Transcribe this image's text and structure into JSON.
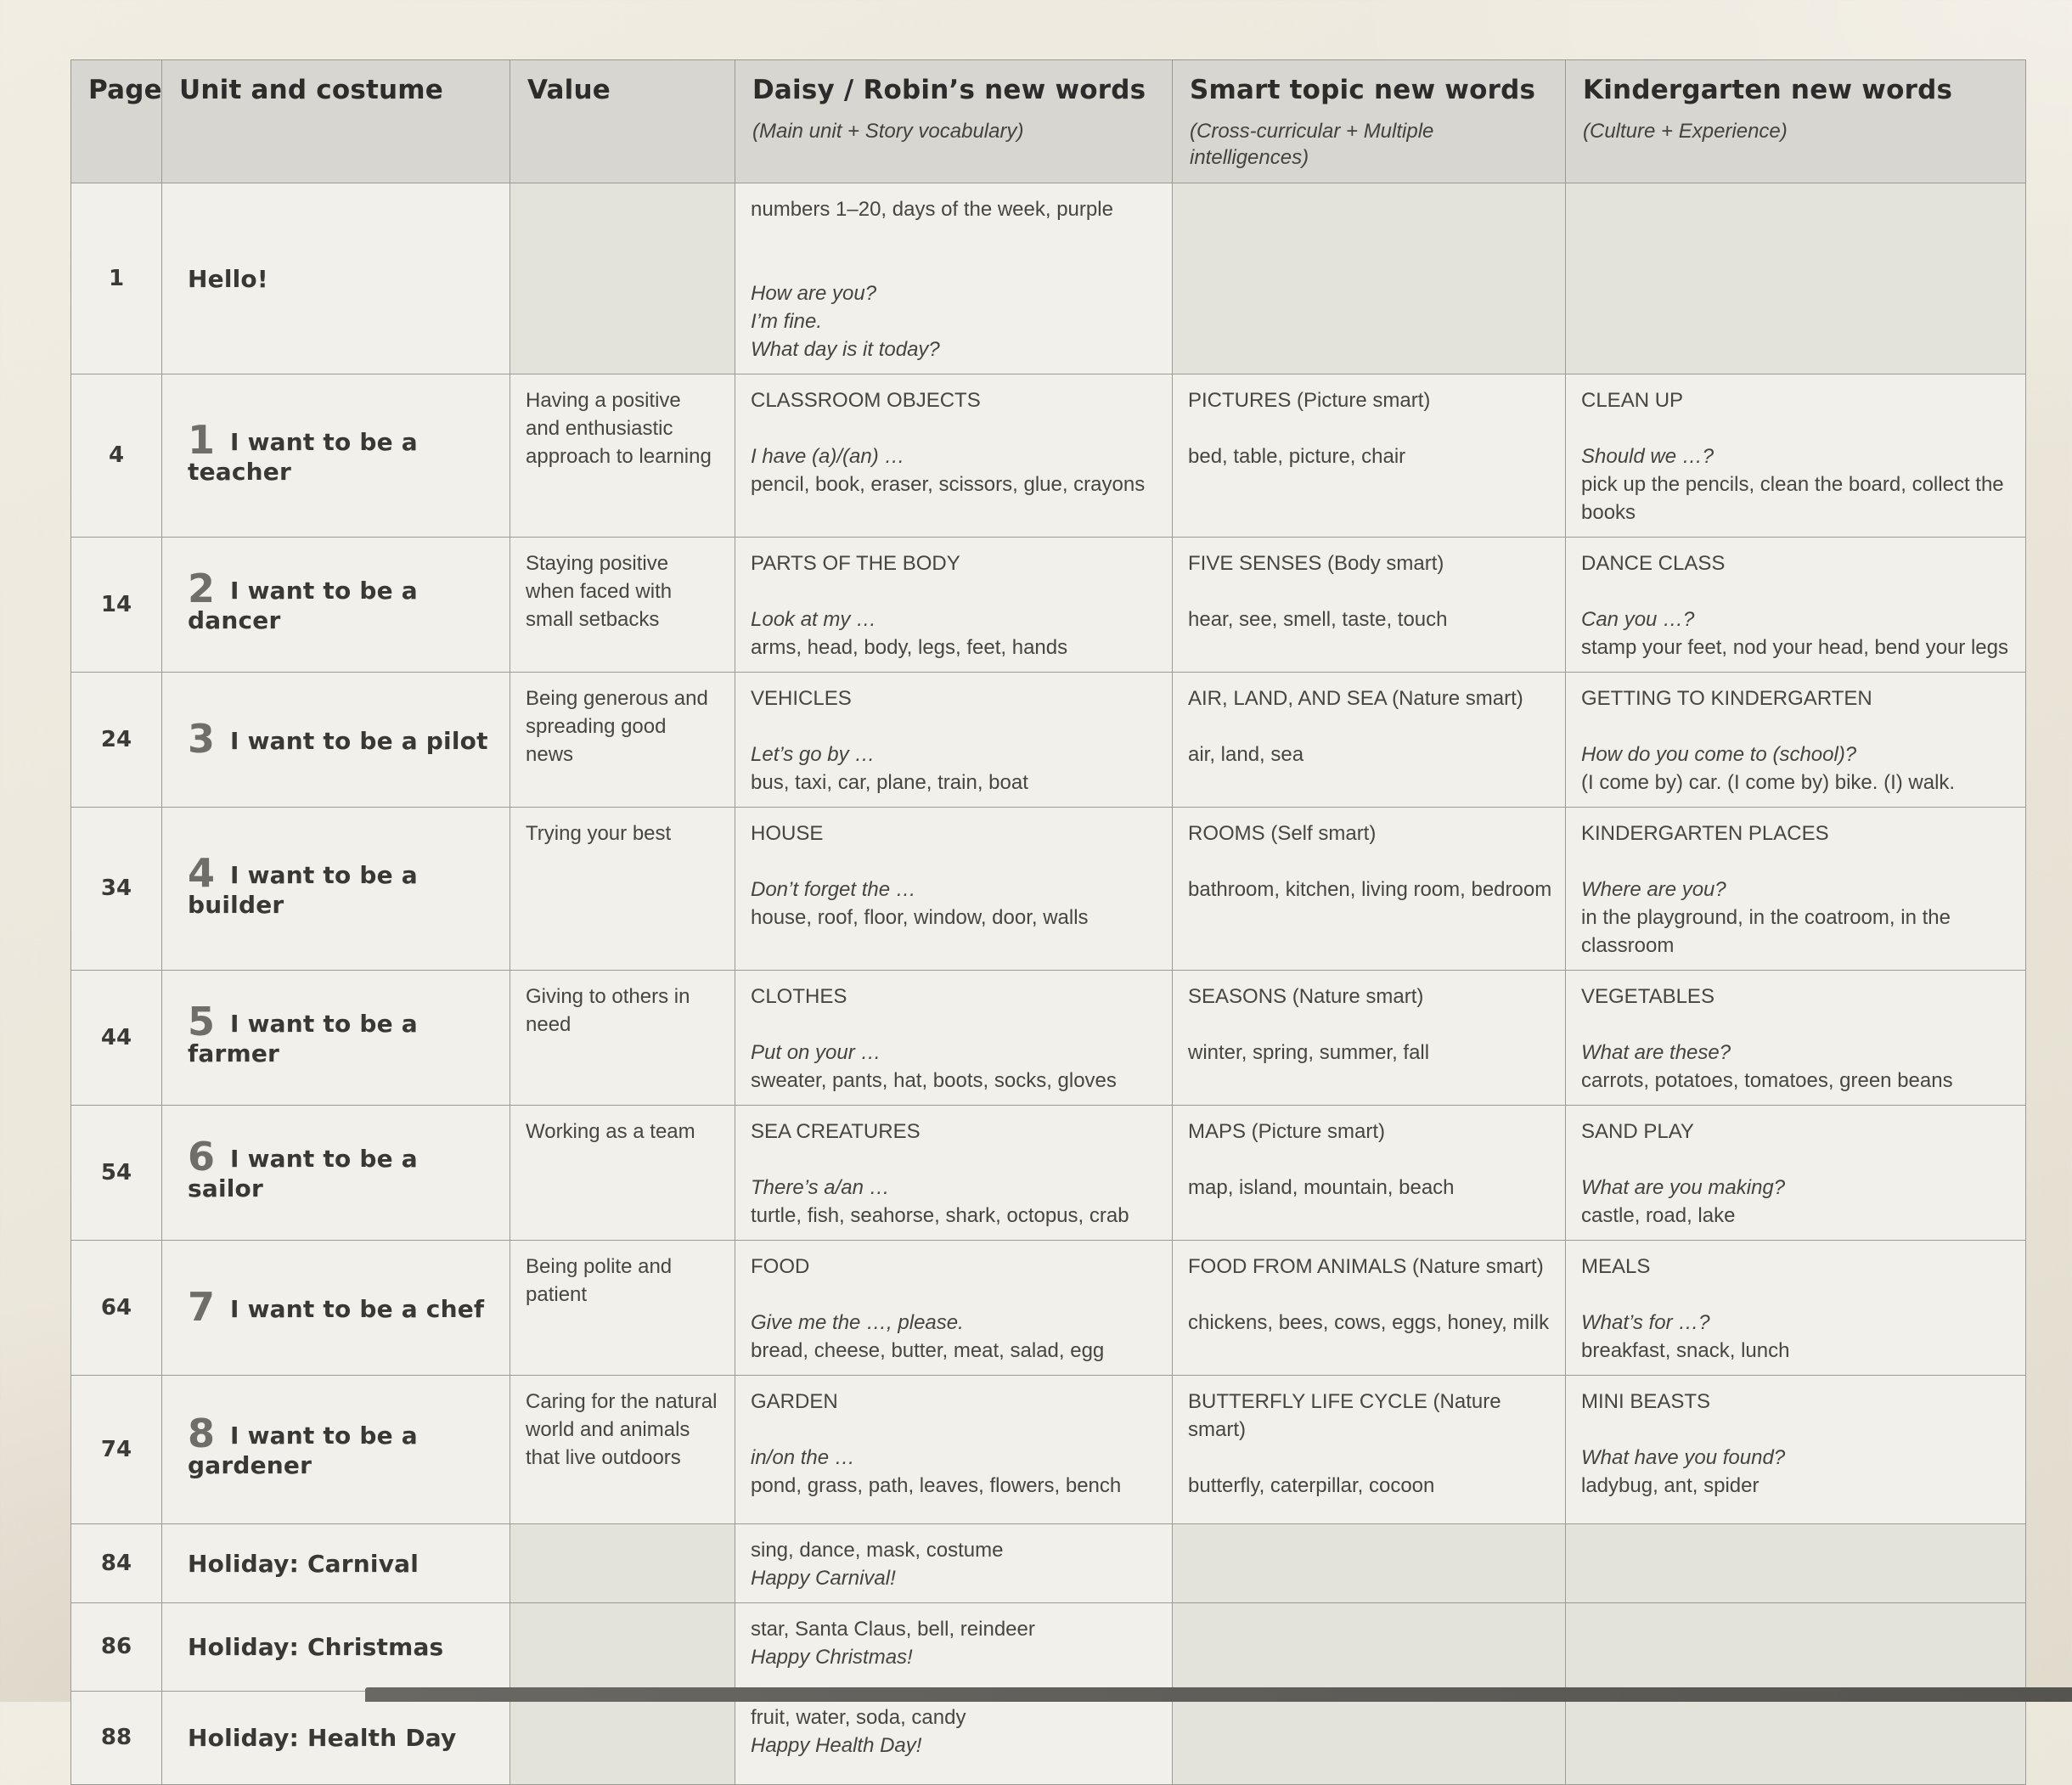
{
  "table": {
    "columns": [
      {
        "label": "Page",
        "sublabel": ""
      },
      {
        "label": "Unit and costume",
        "sublabel": ""
      },
      {
        "label": "Value",
        "sublabel": ""
      },
      {
        "label": "Daisy / Robin’s new words",
        "sublabel": "(Main unit + Story vocabulary)"
      },
      {
        "label": "Smart topic new words",
        "sublabel": "(Cross-curricular + Multiple intelligences)"
      },
      {
        "label": "Kindergarten new words",
        "sublabel": "(Culture + Experience)"
      }
    ],
    "rows": [
      {
        "page": "1",
        "unit_number": "",
        "unit_title": "Hello!",
        "value": null,
        "daisy": [
          {
            "text": "numbers 1–20, days of the week, purple"
          },
          {
            "text": ""
          },
          {
            "text": ""
          },
          {
            "text": "How are you?",
            "style": "italic"
          },
          {
            "text": "I’m fine.",
            "style": "italic"
          },
          {
            "text": "What day is it today?",
            "style": "italic"
          }
        ],
        "smart": null,
        "kinder": null
      },
      {
        "page": "4",
        "unit_number": "1",
        "unit_title": "I want to be a teacher",
        "value": "Having a positive and enthusiastic approach to learning",
        "daisy": [
          {
            "text": "CLASSROOM OBJECTS"
          },
          {
            "text": ""
          },
          {
            "text": "I have (a)/(an) …",
            "style": "italic"
          },
          {
            "text": "pencil, book, eraser, scissors, glue, crayons"
          }
        ],
        "smart": [
          {
            "text": "PICTURES (Picture smart)"
          },
          {
            "text": ""
          },
          {
            "text": "bed, table, picture, chair"
          }
        ],
        "kinder": [
          {
            "text": "CLEAN UP"
          },
          {
            "text": ""
          },
          {
            "text": "Should we …?",
            "style": "italic"
          },
          {
            "text": "pick up the pencils, clean the board, collect the books"
          }
        ]
      },
      {
        "page": "14",
        "unit_number": "2",
        "unit_title": "I want to be a dancer",
        "value": "Staying positive when faced with small setbacks",
        "daisy": [
          {
            "text": "PARTS OF THE BODY"
          },
          {
            "text": ""
          },
          {
            "text": "Look at my …",
            "style": "italic"
          },
          {
            "text": "arms, head, body, legs, feet, hands"
          }
        ],
        "smart": [
          {
            "text": "FIVE SENSES (Body smart)"
          },
          {
            "text": ""
          },
          {
            "text": "hear, see, smell, taste, touch"
          }
        ],
        "kinder": [
          {
            "text": "DANCE CLASS"
          },
          {
            "text": ""
          },
          {
            "text": "Can you …?",
            "style": "italic"
          },
          {
            "text": "stamp your feet, nod your head, bend your legs"
          }
        ]
      },
      {
        "page": "24",
        "unit_number": "3",
        "unit_title": "I want to be a pilot",
        "value": "Being generous and spreading good news",
        "daisy": [
          {
            "text": "VEHICLES"
          },
          {
            "text": ""
          },
          {
            "text": "Let’s go by …",
            "style": "italic"
          },
          {
            "text": "bus, taxi, car, plane, train, boat"
          }
        ],
        "smart": [
          {
            "text": "AIR, LAND, AND SEA (Nature smart)"
          },
          {
            "text": ""
          },
          {
            "text": "air, land, sea"
          }
        ],
        "kinder": [
          {
            "text": "GETTING TO KINDERGARTEN"
          },
          {
            "text": ""
          },
          {
            "text": "How do you come to (school)?",
            "style": "italic"
          },
          {
            "text": "(I come by) car. (I come by) bike. (I) walk."
          }
        ]
      },
      {
        "page": "34",
        "unit_number": "4",
        "unit_title": "I want to be a builder",
        "value": "Trying your best",
        "daisy": [
          {
            "text": "HOUSE"
          },
          {
            "text": ""
          },
          {
            "text": "Don’t forget the …",
            "style": "italic"
          },
          {
            "text": "house, roof, floor, window, door, walls"
          }
        ],
        "smart": [
          {
            "text": "ROOMS (Self smart)"
          },
          {
            "text": ""
          },
          {
            "text": "bathroom, kitchen, living room, bedroom"
          }
        ],
        "kinder": [
          {
            "text": "KINDERGARTEN PLACES"
          },
          {
            "text": ""
          },
          {
            "text": "Where are you?",
            "style": "italic"
          },
          {
            "text": "in the playground, in the coatroom, in the classroom"
          }
        ]
      },
      {
        "page": "44",
        "unit_number": "5",
        "unit_title": "I want to be a farmer",
        "value": "Giving to others in need",
        "daisy": [
          {
            "text": "CLOTHES"
          },
          {
            "text": ""
          },
          {
            "text": "Put on your …",
            "style": "italic"
          },
          {
            "text": "sweater, pants, hat, boots, socks, gloves"
          }
        ],
        "smart": [
          {
            "text": "SEASONS (Nature smart)"
          },
          {
            "text": ""
          },
          {
            "text": "winter, spring, summer, fall"
          }
        ],
        "kinder": [
          {
            "text": "VEGETABLES"
          },
          {
            "text": ""
          },
          {
            "text": "What are these?",
            "style": "italic"
          },
          {
            "text": "carrots, potatoes, tomatoes, green beans"
          }
        ]
      },
      {
        "page": "54",
        "unit_number": "6",
        "unit_title": "I want to be a sailor",
        "value": "Working as a team",
        "daisy": [
          {
            "text": "SEA CREATURES"
          },
          {
            "text": ""
          },
          {
            "text": "There’s a/an …",
            "style": "italic"
          },
          {
            "text": "turtle, fish, seahorse, shark, octopus, crab"
          }
        ],
        "smart": [
          {
            "text": "MAPS (Picture smart)"
          },
          {
            "text": ""
          },
          {
            "text": "map, island, mountain, beach"
          }
        ],
        "kinder": [
          {
            "text": "SAND PLAY"
          },
          {
            "text": ""
          },
          {
            "text": "What are you making?",
            "style": "italic"
          },
          {
            "text": "castle, road, lake"
          }
        ]
      },
      {
        "page": "64",
        "unit_number": "7",
        "unit_title": "I want to be a chef",
        "value": "Being polite and patient",
        "daisy": [
          {
            "text": "FOOD"
          },
          {
            "text": ""
          },
          {
            "text": "Give me the …, please.",
            "style": "italic"
          },
          {
            "text": "bread, cheese, butter, meat, salad, egg"
          }
        ],
        "smart": [
          {
            "text": "FOOD FROM ANIMALS (Nature smart)"
          },
          {
            "text": ""
          },
          {
            "text": "chickens, bees, cows, eggs, honey, milk"
          }
        ],
        "kinder": [
          {
            "text": "MEALS"
          },
          {
            "text": ""
          },
          {
            "text": "What’s for …?",
            "style": "italic"
          },
          {
            "text": "breakfast, snack, lunch"
          }
        ]
      },
      {
        "page": "74",
        "unit_number": "8",
        "unit_title": "I want to be a gardener",
        "value": "Caring for the natural world and animals that live outdoors",
        "daisy": [
          {
            "text": "GARDEN"
          },
          {
            "text": ""
          },
          {
            "text": "in/on the …",
            "style": "italic"
          },
          {
            "text": "pond, grass, path, leaves, flowers, bench"
          }
        ],
        "smart": [
          {
            "text": "BUTTERFLY LIFE CYCLE (Nature smart)"
          },
          {
            "text": ""
          },
          {
            "text": "butterfly, caterpillar, cocoon"
          }
        ],
        "kinder": [
          {
            "text": "MINI BEASTS"
          },
          {
            "text": ""
          },
          {
            "text": "What have you found?",
            "style": "italic"
          },
          {
            "text": "ladybug, ant, spider"
          }
        ]
      },
      {
        "page": "84",
        "unit_number": "",
        "unit_title": "Holiday: Carnival",
        "value": null,
        "daisy": [
          {
            "text": "sing, dance, mask, costume"
          },
          {
            "text": "Happy Carnival!",
            "style": "italic"
          }
        ],
        "smart": null,
        "kinder": null
      },
      {
        "page": "86",
        "unit_number": "",
        "unit_title": "Holiday: Christmas",
        "value": null,
        "daisy": [
          {
            "text": "star, Santa Claus, bell, reindeer"
          },
          {
            "text": "Happy Christmas!",
            "style": "italic"
          }
        ],
        "smart": null,
        "kinder": null
      },
      {
        "page": "88",
        "unit_number": "",
        "unit_title": "Holiday: Health Day",
        "value": null,
        "daisy": [
          {
            "text": "fruit, water, soda, candy"
          },
          {
            "text": "Happy Health Day!",
            "style": "italic"
          }
        ],
        "smart": null,
        "kinder": null
      }
    ]
  },
  "colors": {
    "paper": "#f1f0ea",
    "shaded_cell": "#e3e2db",
    "header_bg": "#d7d6d1",
    "border": "#9b9a93",
    "text": "#474640",
    "photo_edge": "#56544f"
  }
}
